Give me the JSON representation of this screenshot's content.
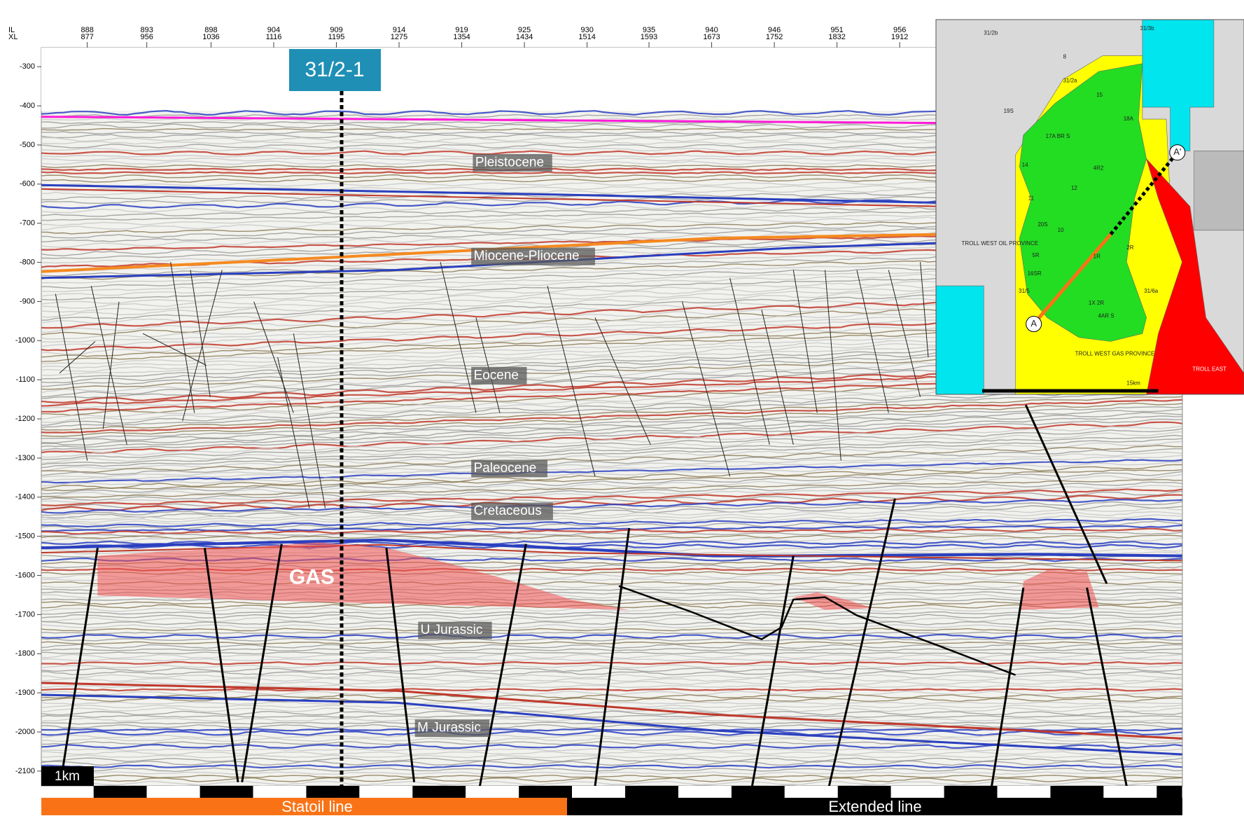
{
  "header": {
    "il_label": "IL",
    "xl_label": "XL",
    "il": [
      888,
      893,
      898,
      904,
      909,
      914,
      919,
      925,
      930,
      935,
      940,
      946,
      951,
      956
    ],
    "xl": [
      877,
      956,
      1036,
      1116,
      1195,
      1275,
      1354,
      1434,
      1514,
      1593,
      1673,
      1752,
      1832,
      1912
    ]
  },
  "depth_ticks": [
    -300,
    -400,
    -500,
    -600,
    -700,
    -800,
    -900,
    -1000,
    -1100,
    -1200,
    -1300,
    -1400,
    -1500,
    -1600,
    -1700,
    -1800,
    -1900,
    -2000,
    -2100
  ],
  "well": "31/2-1",
  "formations": [
    "Pleistocene",
    "Miocene-Pliocene",
    "Eocene",
    "Paleocene",
    "Cretaceous",
    "U Jurassic",
    "M Jurassic"
  ],
  "gas": "GAS",
  "scale": "1km",
  "lines": [
    "Statoil line",
    "Extended line"
  ],
  "map": {
    "labels": [
      "31/2b",
      "31/3b",
      "31/2a",
      "8",
      "19S",
      "17A BR S",
      "15",
      "18A",
      "4R2",
      "12",
      "14",
      "11",
      "20S",
      "10",
      "TROLL WEST OIL PROVINCE",
      "5R",
      "16SR",
      "1R",
      "2R",
      "31/5",
      "31/6a",
      "1X 2R",
      "4AR S",
      "TROLL WEST GAS PROVINCE",
      "TROLL EAST",
      "15km",
      "A",
      "A'"
    ]
  }
}
